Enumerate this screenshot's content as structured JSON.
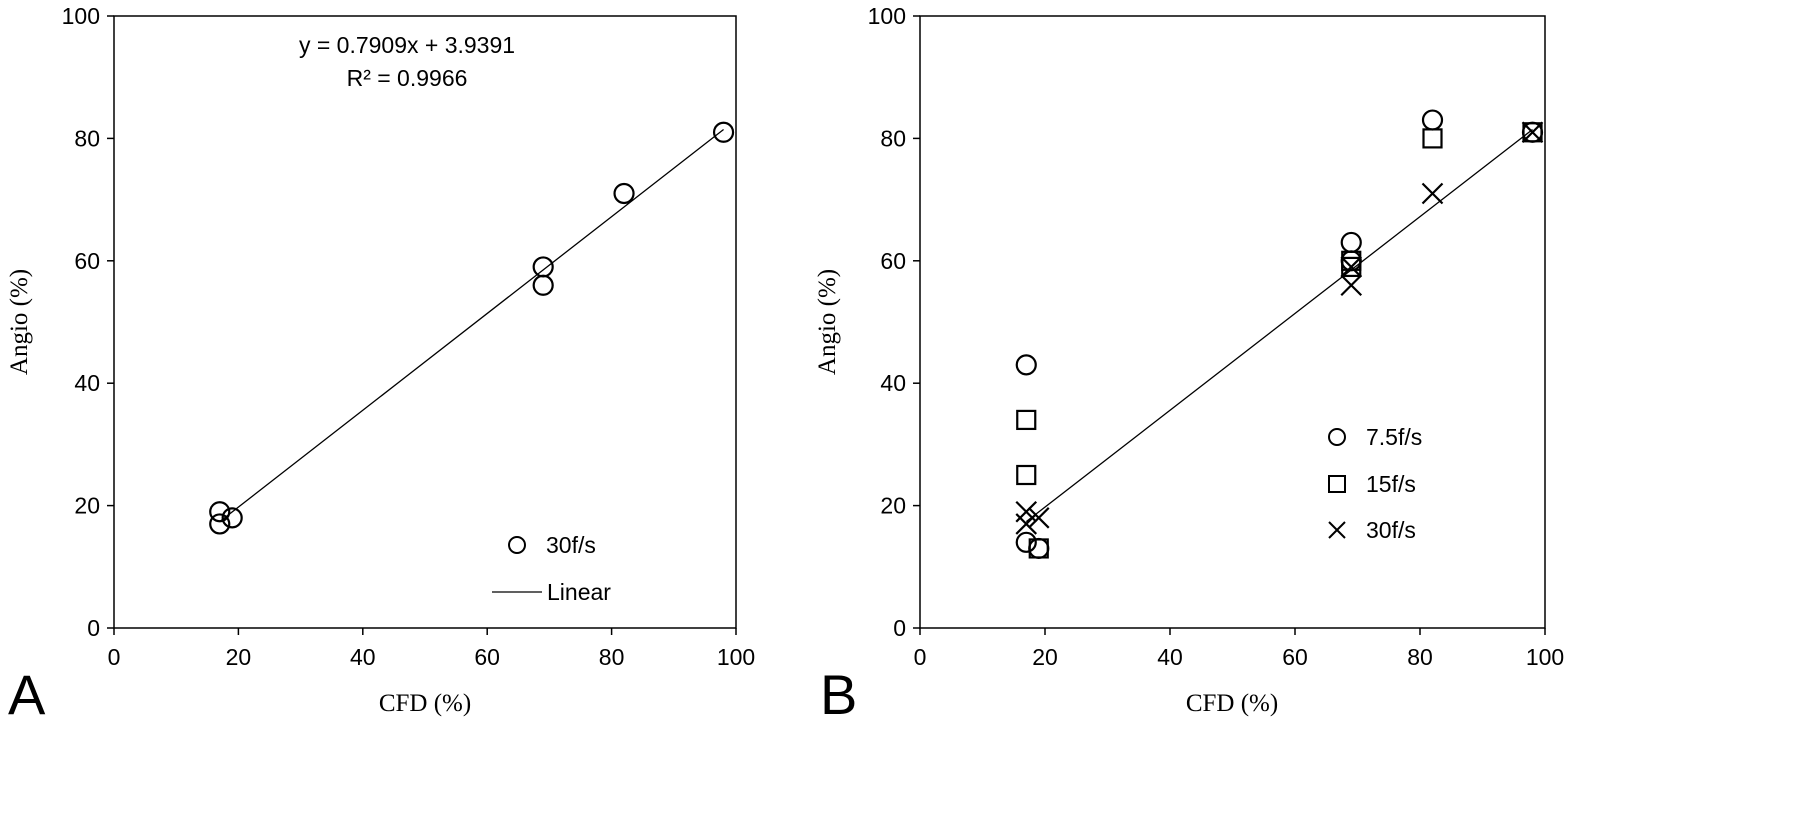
{
  "chart_data": [
    {
      "panel_label": "A",
      "type": "scatter",
      "xlabel": "CFD (%)",
      "ylabel": "Angio (%)",
      "xlim": [
        0,
        100
      ],
      "ylim": [
        0,
        100
      ],
      "x_ticks": [
        "0",
        "20",
        "40",
        "60",
        "80",
        "100"
      ],
      "y_ticks": [
        "0",
        "20",
        "40",
        "60",
        "80",
        "100"
      ],
      "grid": false,
      "legend_position": "bottom-right",
      "series": [
        {
          "name": "30f/s",
          "marker": "circle",
          "points": [
            [
              17,
              19
            ],
            [
              17,
              17
            ],
            [
              19,
              18
            ],
            [
              69,
              59
            ],
            [
              69,
              56
            ],
            [
              82,
              71
            ],
            [
              98,
              81
            ]
          ]
        }
      ],
      "trendline": {
        "name": "Linear",
        "slope": 0.7909,
        "intercept": 3.9391,
        "x_range": [
          17,
          98
        ],
        "equation": "y = 0.7909x + 3.9391",
        "r_squared": "R² = 0.9966"
      }
    },
    {
      "panel_label": "B",
      "type": "scatter",
      "xlabel": "CFD (%)",
      "ylabel": "Angio (%)",
      "xlim": [
        0,
        100
      ],
      "ylim": [
        0,
        100
      ],
      "x_ticks": [
        "0",
        "20",
        "40",
        "60",
        "80",
        "100"
      ],
      "y_ticks": [
        "0",
        "20",
        "40",
        "60",
        "80",
        "100"
      ],
      "grid": false,
      "legend_position": "right",
      "series": [
        {
          "name": "7.5f/s",
          "marker": "circle",
          "points": [
            [
              17,
              43
            ],
            [
              17,
              14
            ],
            [
              19,
              13
            ],
            [
              69,
              63
            ],
            [
              69,
              60
            ],
            [
              82,
              83
            ],
            [
              98,
              81
            ]
          ]
        },
        {
          "name": "15f/s",
          "marker": "square",
          "points": [
            [
              17,
              34
            ],
            [
              17,
              25
            ],
            [
              19,
              13
            ],
            [
              69,
              60
            ],
            [
              69,
              59
            ],
            [
              82,
              80
            ],
            [
              98,
              81
            ]
          ]
        },
        {
          "name": "30f/s",
          "marker": "x",
          "points": [
            [
              17,
              19
            ],
            [
              17,
              17
            ],
            [
              19,
              18
            ],
            [
              69,
              59
            ],
            [
              69,
              56
            ],
            [
              82,
              71
            ],
            [
              98,
              81
            ]
          ]
        }
      ],
      "trendline": {
        "slope": 0.7909,
        "intercept": 3.9391,
        "x_range": [
          17,
          98
        ]
      }
    }
  ]
}
